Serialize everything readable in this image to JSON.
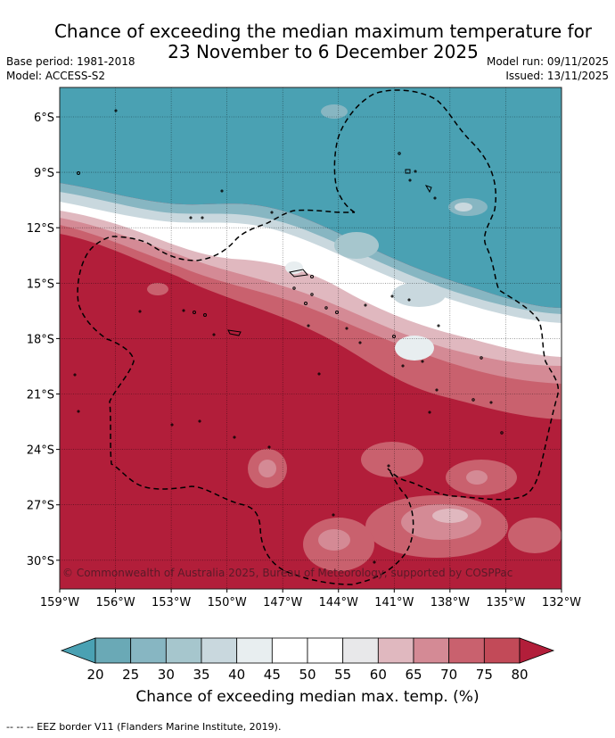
{
  "title_line1": "Chance of exceeding the median maximum temperature for",
  "title_line2": "23 November to 6 December 2025",
  "base_period": "Base period: 1981-2018",
  "model": "Model: ACCESS-S2",
  "model_run": "Model run: 09/11/2025",
  "issued": "Issued: 13/11/2025",
  "copyright": "© Commonwealth of Australia 2025, Bureau of Meteorology, supported by COSPPac",
  "lat_labels": [
    "6°S",
    "9°S",
    "12°S",
    "15°S",
    "18°S",
    "21°S",
    "24°S",
    "27°S",
    "30°S"
  ],
  "lon_labels": [
    "159°W",
    "156°W",
    "153°W",
    "150°W",
    "147°W",
    "144°W",
    "141°W",
    "138°W",
    "135°W",
    "132°W"
  ],
  "colorbar": {
    "ticks": [
      "20",
      "25",
      "30",
      "35",
      "40",
      "45",
      "50",
      "55",
      "60",
      "65",
      "70",
      "75",
      "80"
    ],
    "colors": [
      "#6aa9b6",
      "#87b6c2",
      "#a6c6cd",
      "#c9d8de",
      "#e8eef0",
      "#ffffff",
      "#ffffff",
      "#e8e8ea",
      "#e0b8bf",
      "#d48a95",
      "#c9616e",
      "#c24a58"
    ],
    "under_color": "#4aa1b3",
    "over_color": "#b21e3a",
    "label": "Chance of exceeding median max. temp. (%)"
  },
  "footnote": "-- -- -- EEZ border V11 (Flanders Marine Institute, 2019).",
  "icons": {
    "eez": "eez-border-dashed",
    "land": "island-outline"
  }
}
